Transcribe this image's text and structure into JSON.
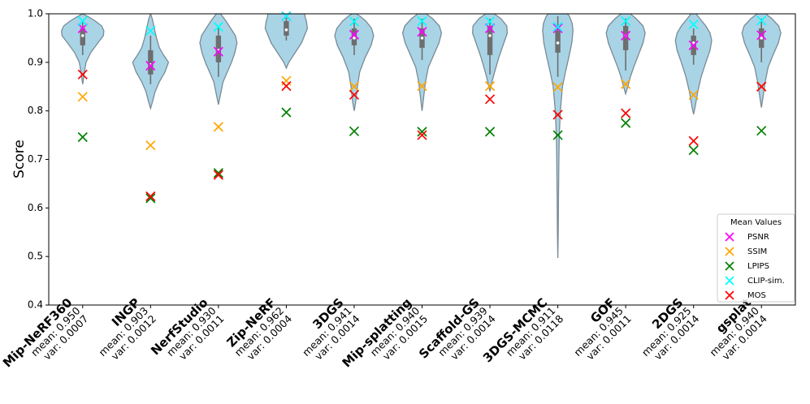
{
  "chart_data": {
    "type": "violin",
    "ylabel": "Score",
    "ylim": [
      0.4,
      1.0
    ],
    "yticks": [
      "0.4",
      "0.5",
      "0.6",
      "0.7",
      "0.8",
      "0.9",
      "1.0"
    ],
    "categories": [
      "Mip-NeRF360",
      "INGP",
      "NerfStudio",
      "Zip-NeRF",
      "3DGS",
      "Mip-splatting",
      "Scaffold-GS",
      "3DGS-MCMC",
      "GOF",
      "2DGS",
      "gsplat"
    ],
    "stats": [
      {
        "mean": "mean: 0.950",
        "var": "var: 0.0007"
      },
      {
        "mean": "mean: 0.903",
        "var": "var: 0.0012"
      },
      {
        "mean": "mean: 0.930",
        "var": "var: 0.0011"
      },
      {
        "mean": "mean: 0.962",
        "var": "var: 0.0004"
      },
      {
        "mean": "mean: 0.941",
        "var": "var: 0.0014"
      },
      {
        "mean": "mean: 0.940",
        "var": "var: 0.0015"
      },
      {
        "mean": "mean: 0.939",
        "var": "var: 0.0014"
      },
      {
        "mean": "mean: 0.911",
        "var": "var: 0.0118"
      },
      {
        "mean": "mean: 0.945",
        "var": "var: 0.0011"
      },
      {
        "mean": "mean: 0.925",
        "var": "var: 0.0014"
      },
      {
        "mean": "mean: 0.940",
        "var": "var: 0.0014"
      }
    ],
    "violins": [
      {
        "min": 0.855,
        "max": 1.0,
        "q1": 0.935,
        "median": 0.955,
        "q3": 0.97,
        "wlo": 0.915,
        "whi": 0.985,
        "shape": [
          [
            0.855,
            0.0
          ],
          [
            0.88,
            0.08
          ],
          [
            0.9,
            0.16
          ],
          [
            0.92,
            0.38
          ],
          [
            0.94,
            0.72
          ],
          [
            0.955,
            0.98
          ],
          [
            0.965,
            1.0
          ],
          [
            0.975,
            0.9
          ],
          [
            0.985,
            0.6
          ],
          [
            0.993,
            0.3
          ],
          [
            1.0,
            0.0
          ]
        ]
      },
      {
        "min": 0.805,
        "max": 1.0,
        "q1": 0.875,
        "median": 0.895,
        "q3": 0.925,
        "wlo": 0.855,
        "whi": 0.955,
        "shape": [
          [
            0.805,
            0.0
          ],
          [
            0.82,
            0.1
          ],
          [
            0.84,
            0.22
          ],
          [
            0.86,
            0.42
          ],
          [
            0.88,
            0.68
          ],
          [
            0.9,
            0.85
          ],
          [
            0.915,
            0.62
          ],
          [
            0.93,
            0.42
          ],
          [
            0.95,
            0.28
          ],
          [
            0.97,
            0.18
          ],
          [
            0.99,
            0.08
          ],
          [
            1.0,
            0.0
          ]
        ]
      },
      {
        "min": 0.813,
        "max": 1.0,
        "q1": 0.9,
        "median": 0.925,
        "q3": 0.955,
        "wlo": 0.87,
        "whi": 0.975,
        "shape": [
          [
            0.813,
            0.0
          ],
          [
            0.83,
            0.08
          ],
          [
            0.86,
            0.22
          ],
          [
            0.88,
            0.42
          ],
          [
            0.9,
            0.62
          ],
          [
            0.92,
            0.78
          ],
          [
            0.94,
            0.88
          ],
          [
            0.955,
            0.8
          ],
          [
            0.97,
            0.58
          ],
          [
            0.985,
            0.36
          ],
          [
            1.0,
            0.1
          ]
        ]
      },
      {
        "min": 0.888,
        "max": 1.0,
        "q1": 0.955,
        "median": 0.967,
        "q3": 0.985,
        "wlo": 0.945,
        "whi": 0.997,
        "shape": [
          [
            0.888,
            0.0
          ],
          [
            0.9,
            0.12
          ],
          [
            0.92,
            0.42
          ],
          [
            0.94,
            0.72
          ],
          [
            0.955,
            0.86
          ],
          [
            0.97,
            1.0
          ],
          [
            0.985,
            0.95
          ],
          [
            0.995,
            0.88
          ],
          [
            1.0,
            0.88
          ]
        ]
      },
      {
        "min": 0.8,
        "max": 1.0,
        "q1": 0.935,
        "median": 0.95,
        "q3": 0.97,
        "wlo": 0.915,
        "whi": 0.99,
        "shape": [
          [
            0.8,
            0.0
          ],
          [
            0.82,
            0.08
          ],
          [
            0.85,
            0.15
          ],
          [
            0.88,
            0.26
          ],
          [
            0.91,
            0.52
          ],
          [
            0.935,
            0.8
          ],
          [
            0.955,
            0.92
          ],
          [
            0.97,
            0.82
          ],
          [
            0.985,
            0.55
          ],
          [
            0.995,
            0.28
          ],
          [
            1.0,
            0.1
          ]
        ]
      },
      {
        "min": 0.8,
        "max": 1.0,
        "q1": 0.93,
        "median": 0.95,
        "q3": 0.97,
        "wlo": 0.905,
        "whi": 0.99,
        "shape": [
          [
            0.8,
            0.0
          ],
          [
            0.83,
            0.08
          ],
          [
            0.86,
            0.16
          ],
          [
            0.89,
            0.3
          ],
          [
            0.915,
            0.55
          ],
          [
            0.94,
            0.8
          ],
          [
            0.96,
            0.92
          ],
          [
            0.975,
            0.82
          ],
          [
            0.99,
            0.5
          ],
          [
            1.0,
            0.2
          ]
        ]
      },
      {
        "min": 0.84,
        "max": 1.0,
        "q1": 0.915,
        "median": 0.955,
        "q3": 0.975,
        "wlo": 0.875,
        "whi": 0.99,
        "shape": [
          [
            0.84,
            0.0
          ],
          [
            0.86,
            0.1
          ],
          [
            0.88,
            0.22
          ],
          [
            0.91,
            0.42
          ],
          [
            0.94,
            0.66
          ],
          [
            0.96,
            0.82
          ],
          [
            0.975,
            0.8
          ],
          [
            0.99,
            0.52
          ],
          [
            1.0,
            0.2
          ]
        ]
      },
      {
        "min": 0.497,
        "max": 1.0,
        "q1": 0.92,
        "median": 0.94,
        "q3": 0.965,
        "wlo": 0.87,
        "whi": 0.995,
        "shape": [
          [
            0.497,
            0.0
          ],
          [
            0.55,
            0.02
          ],
          [
            0.62,
            0.03
          ],
          [
            0.7,
            0.05
          ],
          [
            0.75,
            0.07
          ],
          [
            0.8,
            0.12
          ],
          [
            0.85,
            0.22
          ],
          [
            0.88,
            0.36
          ],
          [
            0.91,
            0.52
          ],
          [
            0.94,
            0.66
          ],
          [
            0.965,
            0.72
          ],
          [
            0.98,
            0.68
          ],
          [
            0.995,
            0.55
          ],
          [
            1.0,
            0.45
          ]
        ]
      },
      {
        "min": 0.835,
        "max": 1.0,
        "q1": 0.925,
        "median": 0.955,
        "q3": 0.975,
        "wlo": 0.883,
        "whi": 0.99,
        "shape": [
          [
            0.835,
            0.0
          ],
          [
            0.85,
            0.1
          ],
          [
            0.87,
            0.22
          ],
          [
            0.89,
            0.38
          ],
          [
            0.915,
            0.6
          ],
          [
            0.94,
            0.82
          ],
          [
            0.96,
            0.92
          ],
          [
            0.975,
            0.82
          ],
          [
            0.99,
            0.5
          ],
          [
            1.0,
            0.22
          ]
        ]
      },
      {
        "min": 0.793,
        "max": 1.0,
        "q1": 0.915,
        "median": 0.94,
        "q3": 0.955,
        "wlo": 0.895,
        "whi": 0.97,
        "shape": [
          [
            0.793,
            0.0
          ],
          [
            0.81,
            0.08
          ],
          [
            0.84,
            0.2
          ],
          [
            0.87,
            0.36
          ],
          [
            0.9,
            0.58
          ],
          [
            0.925,
            0.78
          ],
          [
            0.945,
            0.86
          ],
          [
            0.96,
            0.78
          ],
          [
            0.975,
            0.58
          ],
          [
            0.99,
            0.3
          ],
          [
            1.0,
            0.12
          ]
        ]
      },
      {
        "min": 0.807,
        "max": 1.0,
        "q1": 0.93,
        "median": 0.95,
        "q3": 0.97,
        "wlo": 0.9,
        "whi": 0.99,
        "shape": [
          [
            0.807,
            0.0
          ],
          [
            0.83,
            0.08
          ],
          [
            0.86,
            0.18
          ],
          [
            0.89,
            0.32
          ],
          [
            0.915,
            0.55
          ],
          [
            0.94,
            0.8
          ],
          [
            0.96,
            0.92
          ],
          [
            0.975,
            0.82
          ],
          [
            0.99,
            0.5
          ],
          [
            1.0,
            0.2
          ]
        ]
      }
    ],
    "series": [
      {
        "name": "PSNR",
        "color": "#ff00ff",
        "values": [
          0.97,
          0.893,
          0.922,
          0.995,
          0.957,
          0.963,
          0.97,
          0.97,
          0.955,
          0.935,
          0.956
        ]
      },
      {
        "name": "SSIM",
        "color": "#ffa500",
        "values": [
          0.829,
          0.729,
          0.767,
          0.862,
          0.85,
          0.851,
          0.851,
          0.849,
          0.855,
          0.833,
          0.85
        ]
      },
      {
        "name": "LPIPS",
        "color": "#008000",
        "values": [
          0.746,
          0.62,
          0.672,
          0.797,
          0.758,
          0.757,
          0.757,
          0.75,
          0.775,
          0.719,
          0.759
        ]
      },
      {
        "name": "CLIP-sim.",
        "color": "#00ffff",
        "values": [
          0.985,
          0.965,
          0.973,
          0.995,
          0.984,
          0.985,
          0.984,
          0.973,
          0.985,
          0.978,
          0.986
        ]
      },
      {
        "name": "MOS",
        "color": "#ff0000",
        "values": [
          0.875,
          0.624,
          0.668,
          0.851,
          0.833,
          0.75,
          0.824,
          0.792,
          0.795,
          0.738,
          0.85
        ]
      }
    ],
    "legend": {
      "title": "Mean Values",
      "location": "lower-right"
    },
    "colors": {
      "violin_fill": "#a9d4e6",
      "violin_edge": "#7a8a96",
      "box": "#6e6e6e"
    }
  }
}
